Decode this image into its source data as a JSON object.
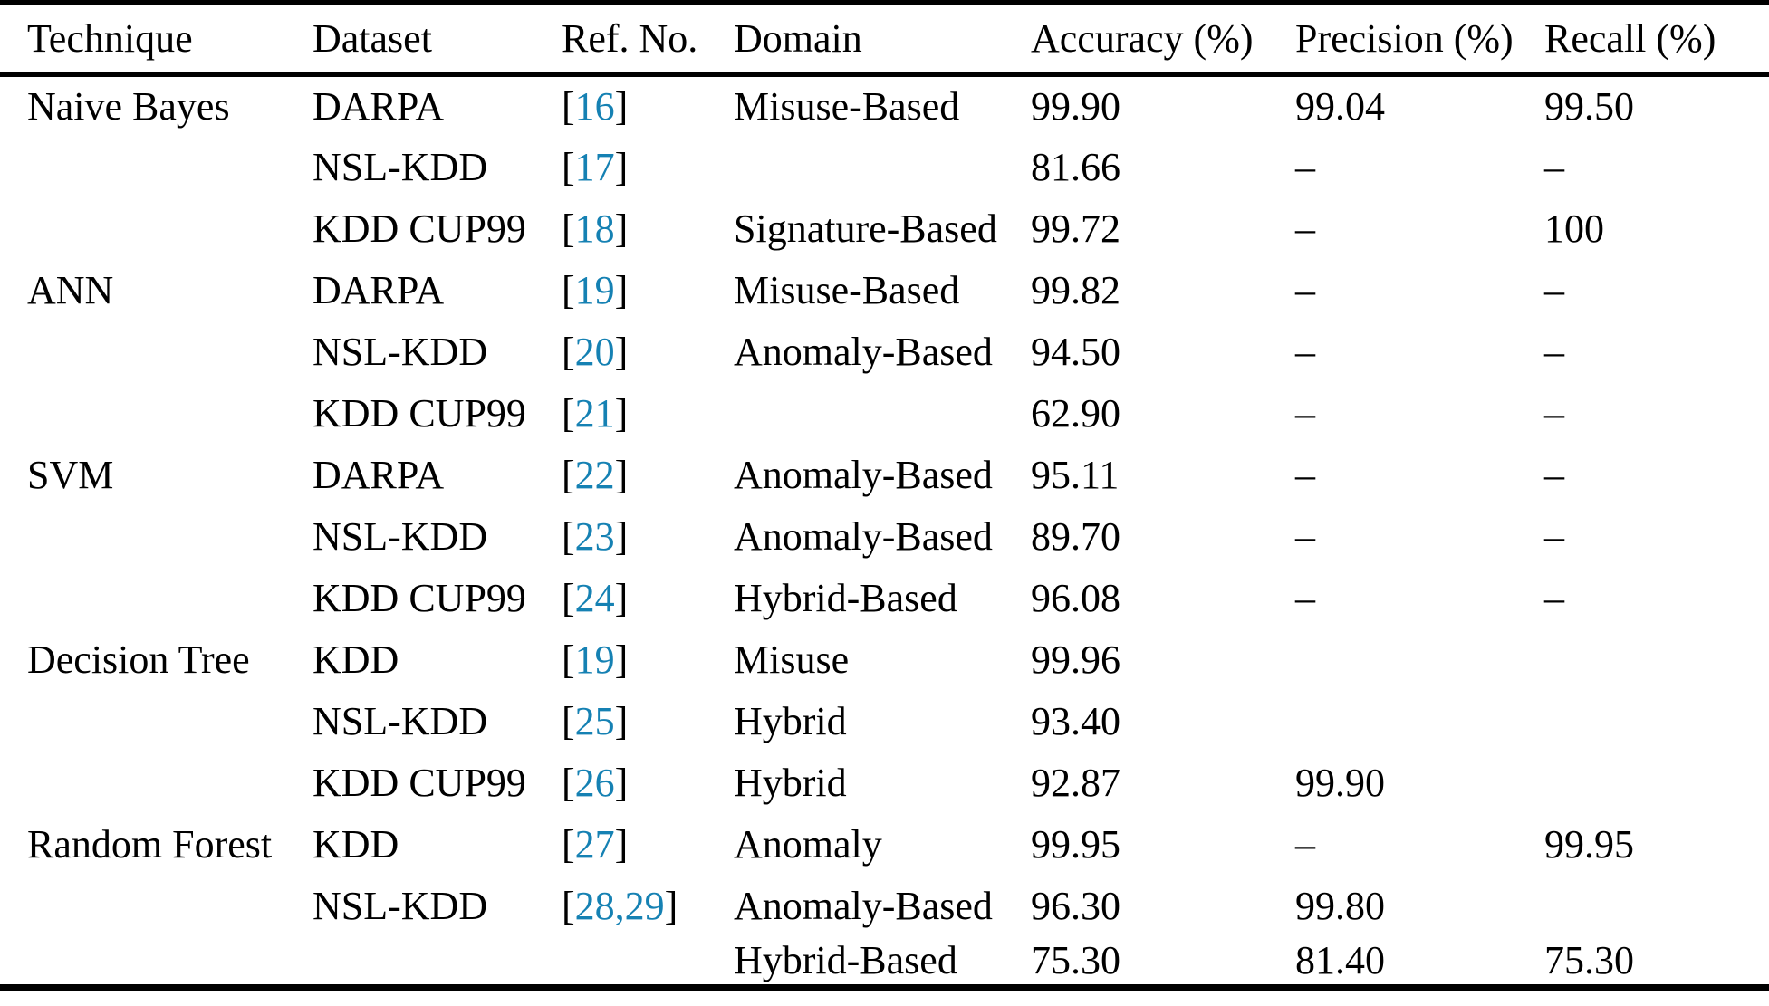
{
  "colors": {
    "background": "#ffffff",
    "text": "#000000",
    "rule": "#000000",
    "citation_link": "#1581b3"
  },
  "punctuation": {
    "bracket_open": "[",
    "bracket_close": "]"
  },
  "table": {
    "headers": [
      "Technique",
      "Dataset",
      "Ref. No.",
      "Domain",
      "Accuracy (%)",
      "Precision (%)",
      "Recall (%)"
    ],
    "rows": [
      {
        "technique": "Naive Bayes",
        "dataset": "DARPA",
        "ref": "16",
        "domain": "Misuse-Based",
        "accuracy": "99.90",
        "precision": "99.04",
        "recall": "99.50"
      },
      {
        "technique": "",
        "dataset": "NSL-KDD",
        "ref": "17",
        "domain": "",
        "accuracy": "81.66",
        "precision": "–",
        "recall": "–"
      },
      {
        "technique": "",
        "dataset": "KDD CUP99",
        "ref": "18",
        "domain": "Signature-Based",
        "accuracy": "99.72",
        "precision": "–",
        "recall": "100"
      },
      {
        "technique": "ANN",
        "dataset": "DARPA",
        "ref": "19",
        "domain": "Misuse-Based",
        "accuracy": "99.82",
        "precision": "–",
        "recall": "–"
      },
      {
        "technique": "",
        "dataset": "NSL-KDD",
        "ref": "20",
        "domain": "Anomaly-Based",
        "accuracy": "94.50",
        "precision": "–",
        "recall": "–"
      },
      {
        "technique": "",
        "dataset": "KDD CUP99",
        "ref": "21",
        "domain": "",
        "accuracy": "62.90",
        "precision": "–",
        "recall": "–"
      },
      {
        "technique": "SVM",
        "dataset": "DARPA",
        "ref": "22",
        "domain": "Anomaly-Based",
        "accuracy": "95.11",
        "precision": "–",
        "recall": "–"
      },
      {
        "technique": "",
        "dataset": "NSL-KDD",
        "ref": "23",
        "domain": "Anomaly-Based",
        "accuracy": "89.70",
        "precision": "–",
        "recall": "–"
      },
      {
        "technique": "",
        "dataset": "KDD CUP99",
        "ref": "24",
        "domain": "Hybrid-Based",
        "accuracy": "96.08",
        "precision": "–",
        "recall": "–"
      },
      {
        "technique": "Decision Tree",
        "dataset": "KDD",
        "ref": "19",
        "domain": "Misuse",
        "accuracy": "99.96",
        "precision": "",
        "recall": ""
      },
      {
        "technique": "",
        "dataset": "NSL-KDD",
        "ref": "25",
        "domain": "Hybrid",
        "accuracy": "93.40",
        "precision": "",
        "recall": ""
      },
      {
        "technique": "",
        "dataset": "KDD CUP99",
        "ref": "26",
        "domain": "Hybrid",
        "accuracy": "92.87",
        "precision": "99.90",
        "recall": ""
      },
      {
        "technique": "Random Forest",
        "dataset": "KDD",
        "ref": "27",
        "domain": "Anomaly",
        "accuracy": "99.95",
        "precision": "–",
        "recall": "99.95"
      },
      {
        "technique": "",
        "dataset": "NSL-KDD",
        "ref": "28,29",
        "domain": "Anomaly-Based",
        "accuracy": "96.30",
        "precision": "99.80",
        "recall": ""
      },
      {
        "technique": "",
        "dataset": "",
        "ref": "",
        "domain": "Hybrid-Based",
        "accuracy": "75.30",
        "precision": "81.40",
        "recall": "75.30"
      }
    ]
  }
}
